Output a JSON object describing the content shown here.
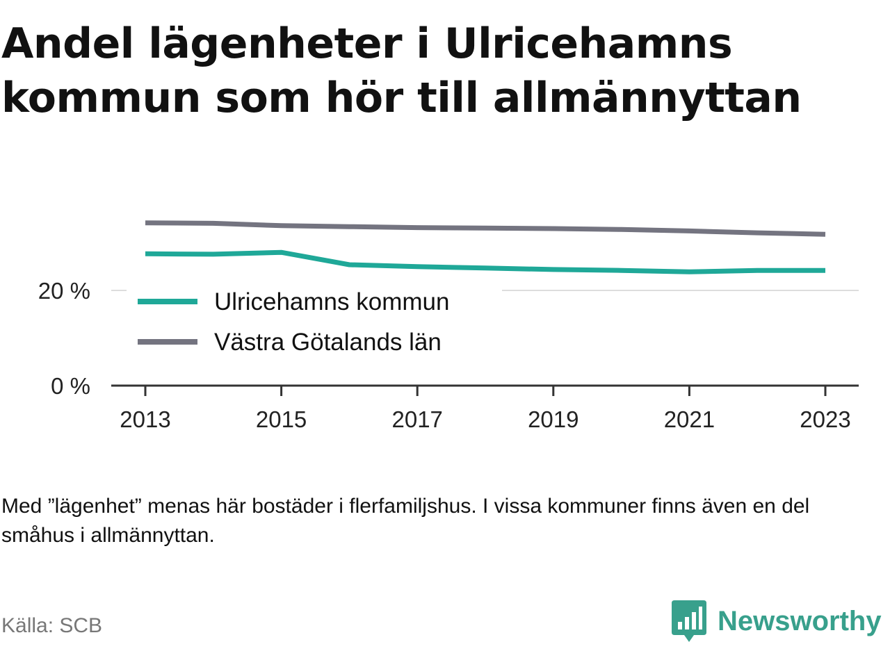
{
  "title": "Andel lägenheter i Ulricehamns kommun som hör till allmännyttan",
  "note": "Med ”lägenhet” menas här bostäder i flerfamiljshus. I vissa kommuner finns även en del småhus i allmännyttan.",
  "source": "Källa: SCB",
  "brand": {
    "name": "Newsworthy",
    "color": "#38a08c"
  },
  "chart_data": {
    "type": "line",
    "title": "Andel lägenheter i Ulricehamns kommun som hör till allmännyttan",
    "xlabel": "",
    "ylabel": "",
    "x": [
      2013,
      2014,
      2015,
      2016,
      2017,
      2018,
      2019,
      2020,
      2021,
      2022,
      2023
    ],
    "x_ticks": [
      "2013",
      "2015",
      "2017",
      "2019",
      "2021",
      "2023"
    ],
    "y_ticks": [
      "0 %",
      "20 %"
    ],
    "ylim": [
      0,
      40
    ],
    "grid": true,
    "legend": "center-left",
    "series": [
      {
        "name": "Ulricehamns kommun",
        "color": "#1fa898",
        "values": [
          27.7,
          27.6,
          28.0,
          25.4,
          25.0,
          24.7,
          24.4,
          24.2,
          23.9,
          24.2,
          24.2
        ]
      },
      {
        "name": "Västra Götalands län",
        "color": "#747480",
        "values": [
          34.2,
          34.1,
          33.6,
          33.4,
          33.2,
          33.1,
          33.0,
          32.8,
          32.5,
          32.1,
          31.8
        ]
      }
    ]
  }
}
